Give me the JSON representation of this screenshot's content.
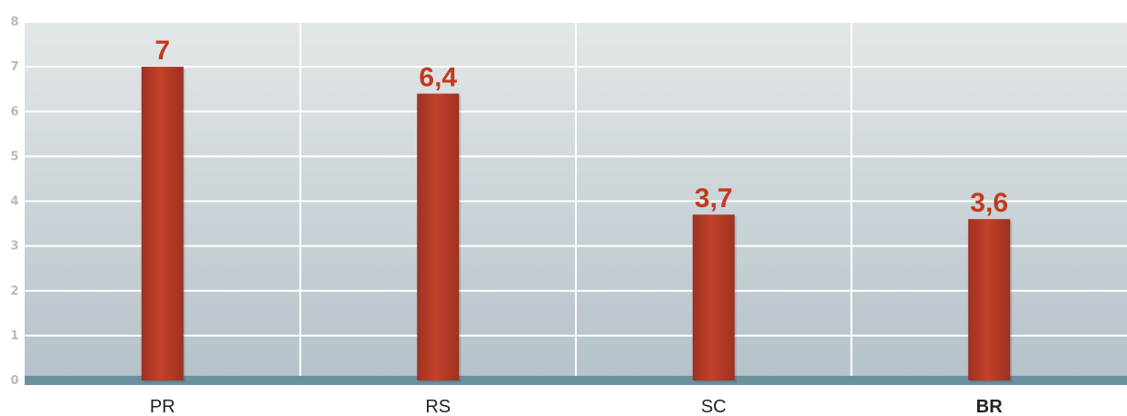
{
  "colors": {
    "bar": "#c2412a",
    "bar_dark": "#9e3220",
    "data_label": "#c23a1c",
    "plot_bg_top": "#e3e7e9",
    "plot_bg_bottom": "#b5c2c9",
    "baseline": "#6b909e",
    "grid": "#ffffff",
    "ytick": "#b9b9b9",
    "xtick": "#222222"
  },
  "chart_data": {
    "type": "bar",
    "categories": [
      "PR",
      "RS",
      "SC",
      "BR"
    ],
    "values": [
      7,
      6.4,
      3.7,
      3.6
    ],
    "value_labels": [
      "7",
      "6,4",
      "3,7",
      "3,6"
    ],
    "emphasized_category": "BR",
    "ylim": [
      0,
      8
    ],
    "yticks": [
      "0",
      "1",
      "2",
      "3",
      "4",
      "5",
      "6",
      "7",
      "8"
    ],
    "grid": true,
    "legend": "none",
    "title": "",
    "xlabel": "",
    "ylabel": ""
  }
}
